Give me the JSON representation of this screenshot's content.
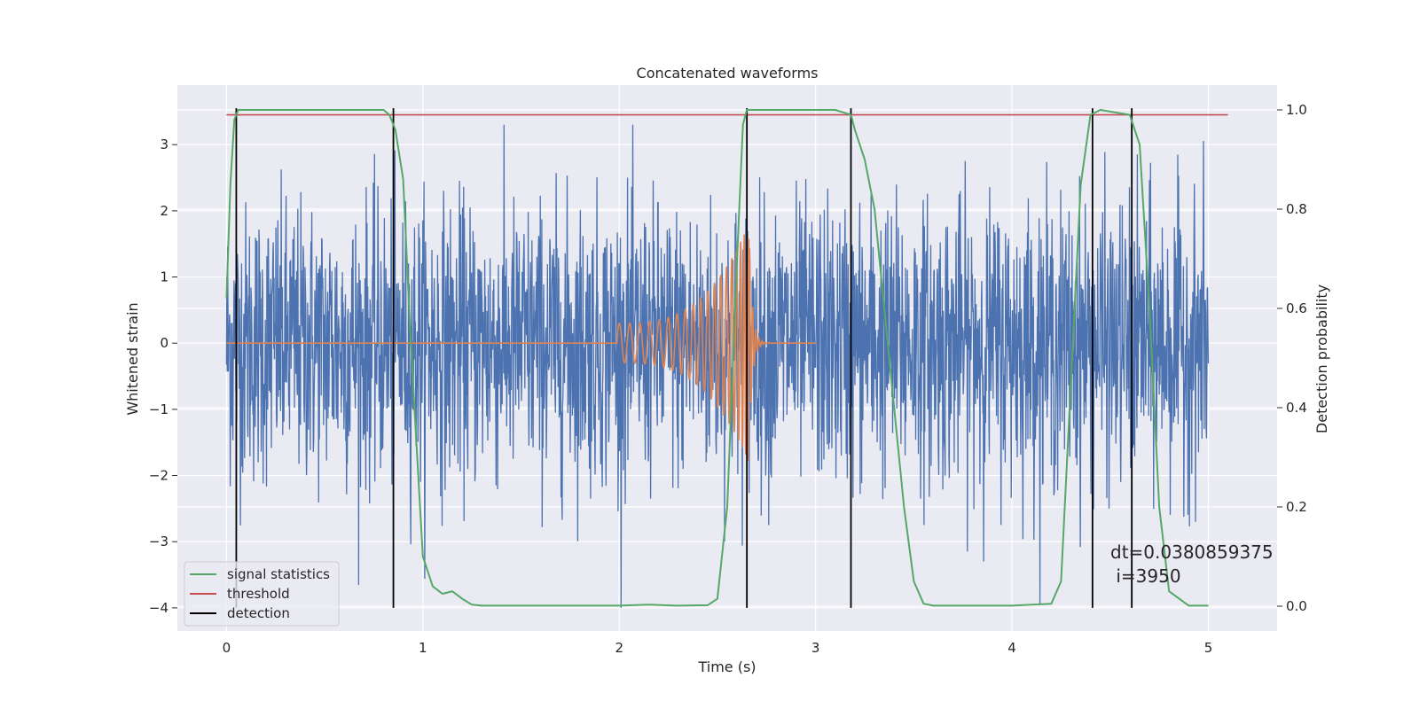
{
  "chart_data": {
    "type": "line",
    "title": "Concatenated waveforms",
    "xlabel": "Time (s)",
    "ylabel_left": "Whitened strain",
    "ylabel_right": "Detection probability",
    "xlim": [
      -0.25,
      5.35
    ],
    "ylim_left": [
      -4.35,
      3.9
    ],
    "ylim_right": [
      -0.05,
      1.05
    ],
    "x_ticks": [
      0,
      1,
      2,
      3,
      4,
      5
    ],
    "y_ticks_left": [
      -4,
      -3,
      -2,
      -1,
      0,
      1,
      2,
      3
    ],
    "y_ticks_right": [
      0.0,
      0.2,
      0.4,
      0.6,
      0.8,
      1.0
    ],
    "x_tick_labels": [
      "0",
      "1",
      "2",
      "3",
      "4",
      "5"
    ],
    "y_tick_labels_left": [
      "−4",
      "−3",
      "−2",
      "−1",
      "0",
      "1",
      "2",
      "3"
    ],
    "y_tick_labels_right": [
      "0.0",
      "0.2",
      "0.4",
      "0.6",
      "0.8",
      "1.0"
    ],
    "grid": true,
    "legend_position": "lower-left",
    "series": [
      {
        "name": "signal statistics",
        "axis": "right",
        "color": "#55a868",
        "x": [
          0.0,
          0.02,
          0.04,
          0.06,
          0.1,
          0.3,
          0.8,
          0.83,
          0.86,
          0.9,
          0.93,
          0.96,
          1.0,
          1.05,
          1.1,
          1.15,
          1.2,
          1.25,
          1.3,
          1.5,
          2.0,
          2.15,
          2.3,
          2.45,
          2.5,
          2.55,
          2.6,
          2.63,
          2.65,
          2.7,
          2.8,
          3.1,
          3.18,
          3.2,
          3.25,
          3.3,
          3.35,
          3.4,
          3.45,
          3.5,
          3.55,
          3.6,
          4.0,
          4.2,
          4.25,
          4.3,
          4.35,
          4.4,
          4.45,
          4.6,
          4.65,
          4.7,
          4.75,
          4.8,
          4.9,
          5.0
        ],
        "y": [
          0.62,
          0.85,
          0.98,
          1.0,
          1.0,
          1.0,
          1.0,
          0.99,
          0.96,
          0.86,
          0.6,
          0.38,
          0.1,
          0.04,
          0.025,
          0.03,
          0.015,
          0.003,
          0.001,
          0.001,
          0.001,
          0.003,
          0.001,
          0.002,
          0.015,
          0.2,
          0.7,
          0.97,
          1.0,
          1.0,
          1.0,
          1.0,
          0.99,
          0.96,
          0.9,
          0.8,
          0.6,
          0.4,
          0.2,
          0.05,
          0.005,
          0.001,
          0.001,
          0.005,
          0.05,
          0.45,
          0.85,
          0.99,
          1.0,
          0.99,
          0.93,
          0.6,
          0.2,
          0.03,
          0.001,
          0.001
        ]
      },
      {
        "name": "threshold",
        "axis": "right",
        "color": "#c44e52",
        "x": [
          0.0,
          5.1
        ],
        "y": [
          0.99,
          0.99
        ]
      },
      {
        "name": "detection",
        "axis": "left",
        "color": "#000000",
        "x": [
          0.05,
          0.85,
          2.65,
          3.18,
          4.41,
          4.61
        ],
        "y_range": [
          -4.0,
          3.55
        ]
      }
    ],
    "unlabeled_series": [
      {
        "description_role": "noisy strain",
        "color": "#4c72b0",
        "x_range": [
          0.0,
          5.0
        ],
        "typical_amplitude": 1.4,
        "peak_range": [
          -4.0,
          3.3
        ]
      },
      {
        "description_role": "injected waveform",
        "color": "#dd8452",
        "x_range": [
          0.0,
          3.0
        ],
        "chirp_start": 1.99,
        "merger_time": 2.66,
        "amplitude_at_start": 0.3,
        "amplitude_at_merger": 1.8
      }
    ],
    "annotation": {
      "line1": "dt=0.0380859375",
      "line2": " i=3950",
      "x": 4.5,
      "y": -3.0
    }
  },
  "legend": {
    "entries": [
      {
        "label": "signal statistics",
        "color": "#55a868"
      },
      {
        "label": "threshold",
        "color": "#c44e52"
      },
      {
        "label": "detection",
        "color": "#000000"
      }
    ]
  }
}
